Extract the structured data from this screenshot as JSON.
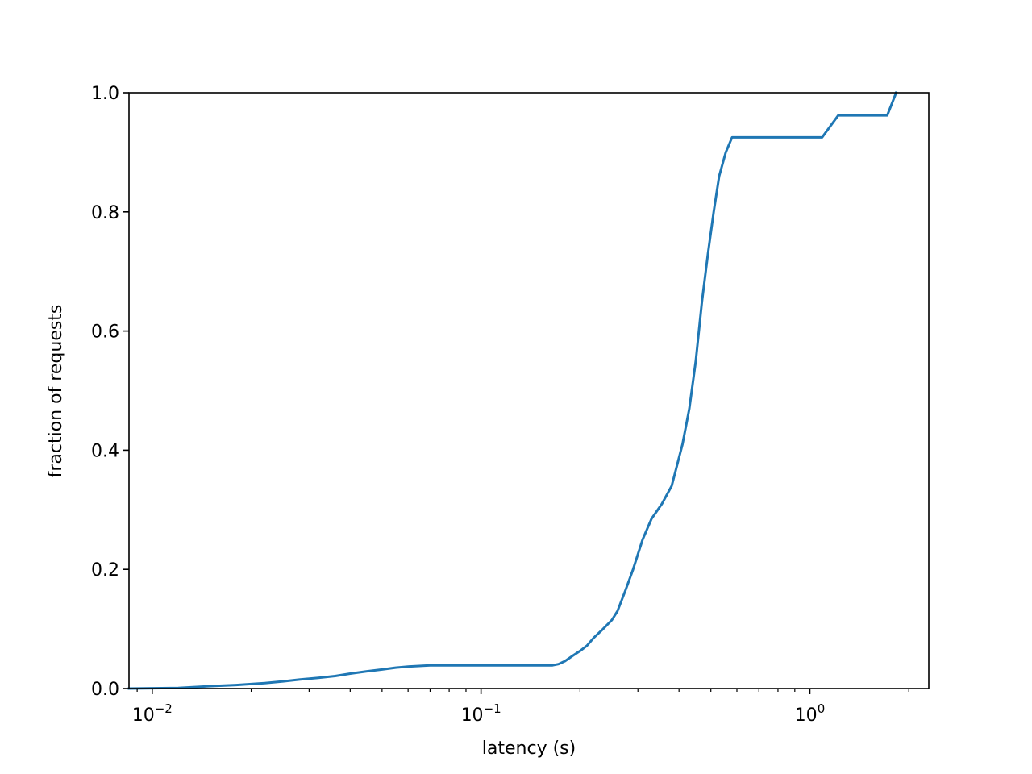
{
  "chart_data": {
    "type": "line",
    "title": "",
    "xlabel": "latency (s)",
    "ylabel": "fraction of requests",
    "xscale": "log",
    "xlim": [
      0.0085,
      2.3
    ],
    "ylim": [
      0.0,
      1.0
    ],
    "grid": false,
    "legend": "none",
    "line_color": "#1f77b4",
    "x_major_ticks": [
      {
        "value": 0.01,
        "mantissa": "10",
        "exponent": "−2"
      },
      {
        "value": 0.1,
        "mantissa": "10",
        "exponent": "−1"
      },
      {
        "value": 1,
        "mantissa": "10",
        "exponent": "0"
      }
    ],
    "x_minor_ticks": [
      0.009,
      0.02,
      0.03,
      0.04,
      0.05,
      0.06,
      0.07,
      0.08,
      0.09,
      0.2,
      0.3,
      0.4,
      0.5,
      0.6,
      0.7,
      0.8,
      0.9,
      2
    ],
    "y_ticks": [
      {
        "value": 0.0,
        "label": "0.0"
      },
      {
        "value": 0.2,
        "label": "0.2"
      },
      {
        "value": 0.4,
        "label": "0.4"
      },
      {
        "value": 0.6,
        "label": "0.6"
      },
      {
        "value": 0.8,
        "label": "0.8"
      },
      {
        "value": 1.0,
        "label": "1.0"
      }
    ],
    "series": [
      {
        "x": [
          0.0085,
          0.012,
          0.015,
          0.018,
          0.022,
          0.025,
          0.028,
          0.032,
          0.036,
          0.04,
          0.045,
          0.05,
          0.055,
          0.06,
          0.07,
          0.1,
          0.13,
          0.165,
          0.172,
          0.18,
          0.19,
          0.2,
          0.21,
          0.22,
          0.235,
          0.25,
          0.26,
          0.275,
          0.29,
          0.31,
          0.33,
          0.355,
          0.38,
          0.41,
          0.43,
          0.45,
          0.47,
          0.49,
          0.51,
          0.53,
          0.555,
          0.58,
          0.62,
          0.67,
          0.7,
          1.09,
          1.22,
          1.72,
          1.83
        ],
        "y": [
          0.0,
          0.001,
          0.004,
          0.006,
          0.009,
          0.012,
          0.015,
          0.018,
          0.021,
          0.025,
          0.029,
          0.032,
          0.035,
          0.037,
          0.039,
          0.039,
          0.039,
          0.039,
          0.041,
          0.046,
          0.055,
          0.063,
          0.072,
          0.085,
          0.1,
          0.115,
          0.13,
          0.165,
          0.2,
          0.25,
          0.285,
          0.31,
          0.34,
          0.41,
          0.47,
          0.55,
          0.65,
          0.73,
          0.8,
          0.86,
          0.9,
          0.925,
          0.925,
          0.925,
          0.925,
          0.925,
          0.962,
          0.962,
          1.0
        ]
      }
    ]
  }
}
